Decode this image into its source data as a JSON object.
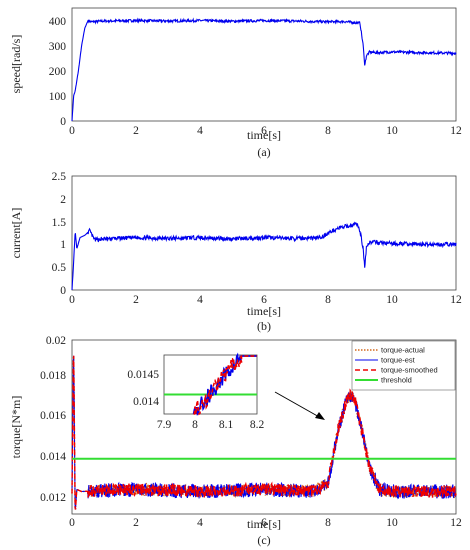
{
  "chart_data": [
    {
      "panel": "a",
      "type": "line",
      "caption": "(a)",
      "ylabel": "speed[rad/s]",
      "xlabel": "time[s]",
      "xlim": [
        0,
        12
      ],
      "ylim": [
        0,
        450
      ],
      "xticks": [
        "0",
        "2",
        "4",
        "6",
        "8",
        "10",
        "12"
      ],
      "yticks": [
        "0",
        "100",
        "200",
        "300",
        "400"
      ],
      "series": [
        {
          "color": "#0000ee",
          "x": [
            0,
            0.05,
            0.1,
            0.2,
            0.3,
            0.4,
            0.5,
            0.6,
            1,
            2,
            3,
            4,
            5,
            6,
            7,
            8,
            8.5,
            9,
            9.1,
            9.15,
            9.2,
            9.3,
            9.5,
            10,
            11,
            12
          ],
          "y": [
            0,
            100,
            120,
            200,
            300,
            370,
            400,
            395,
            398,
            400,
            398,
            400,
            397,
            400,
            398,
            395,
            396,
            390,
            300,
            220,
            260,
            275,
            272,
            275,
            272,
            270
          ]
        }
      ]
    },
    {
      "panel": "b",
      "type": "line",
      "caption": "(b)",
      "ylabel": "current[A]",
      "xlabel": "time[s]",
      "xlim": [
        0,
        12
      ],
      "ylim": [
        0,
        2.5
      ],
      "xticks": [
        "0",
        "2",
        "4",
        "6",
        "8",
        "10",
        "12"
      ],
      "yticks": [
        "0",
        "0.5",
        "1",
        "1.5",
        "2",
        "2.5"
      ],
      "series": [
        {
          "color": "#0000ee",
          "x": [
            0,
            0.05,
            0.1,
            0.15,
            0.25,
            0.4,
            0.55,
            0.7,
            1,
            2,
            3,
            4,
            5,
            6,
            7,
            7.8,
            8.0,
            8.3,
            8.6,
            8.9,
            9.0,
            9.1,
            9.15,
            9.2,
            9.3,
            10,
            11,
            12
          ],
          "y": [
            0,
            0.6,
            1.3,
            0.9,
            1.15,
            1.2,
            1.3,
            1.1,
            1.12,
            1.15,
            1.13,
            1.15,
            1.12,
            1.15,
            1.13,
            1.15,
            1.25,
            1.35,
            1.4,
            1.45,
            1.3,
            0.9,
            0.5,
            0.95,
            1.05,
            1.02,
            1.0,
            1.0
          ]
        }
      ]
    },
    {
      "panel": "c",
      "type": "line",
      "caption": "(c)",
      "ylabel": "torque[N*m]",
      "xlabel": "time[s]",
      "xlim": [
        0,
        12
      ],
      "ylim": [
        0.0115,
        0.02
      ],
      "xticks": [
        "0",
        "2",
        "4",
        "6",
        "8",
        "10",
        "12"
      ],
      "yticks": [
        "0.012",
        "0.014",
        "0.016",
        "0.018",
        "0.02"
      ],
      "legend": [
        "torque-actual",
        "torque-est",
        "torque-smoothed",
        "threshold"
      ],
      "threshold": 0.0142,
      "series": [
        {
          "name": "torque-actual",
          "color": "#d2691e",
          "x": [
            0,
            0.05,
            0.1,
            0.15,
            0.3,
            2,
            4,
            6,
            7.5,
            8,
            8.3,
            8.6,
            8.8,
            9.0,
            9.3,
            9.6,
            10,
            12
          ],
          "y": [
            0.0125,
            0.02,
            0.0115,
            0.0127,
            0.0126,
            0.0127,
            0.0126,
            0.0127,
            0.0126,
            0.013,
            0.0155,
            0.0172,
            0.0173,
            0.016,
            0.0138,
            0.0127,
            0.0126,
            0.0126
          ]
        },
        {
          "name": "torque-est",
          "color": "#0000ee",
          "x": [
            0,
            0.05,
            0.1,
            0.15,
            0.3,
            2,
            4,
            6,
            7.5,
            8,
            8.3,
            8.6,
            8.8,
            9.0,
            9.3,
            9.6,
            10,
            12
          ],
          "y": [
            0.0125,
            0.02,
            0.0115,
            0.0127,
            0.0126,
            0.0127,
            0.0126,
            0.0127,
            0.0126,
            0.013,
            0.0155,
            0.0172,
            0.0173,
            0.016,
            0.0138,
            0.0127,
            0.0126,
            0.0126
          ]
        },
        {
          "name": "torque-smoothed",
          "color": "#ee0000",
          "x": [
            0,
            0.05,
            0.1,
            0.15,
            0.3,
            2,
            4,
            6,
            7.5,
            8,
            8.3,
            8.6,
            8.8,
            9.0,
            9.3,
            9.6,
            10,
            12
          ],
          "y": [
            0.0125,
            0.02,
            0.0115,
            0.0127,
            0.0126,
            0.0127,
            0.0126,
            0.0127,
            0.0126,
            0.013,
            0.0155,
            0.0172,
            0.0173,
            0.016,
            0.0138,
            0.0127,
            0.0126,
            0.0126
          ]
        }
      ],
      "inset": {
        "xlim": [
          7.9,
          8.2
        ],
        "ylim": [
          0.01383,
          0.01495
        ],
        "xticks": [
          "7.9",
          "8",
          "8.1",
          "8.2"
        ],
        "yticks": [
          "0.014",
          "0.0145"
        ]
      }
    }
  ],
  "colors": {
    "line_blue": "#0000ee",
    "line_red": "#ee0000",
    "line_orange": "#d2691e",
    "threshold_green": "#33dd33",
    "arrow": "#000000"
  }
}
